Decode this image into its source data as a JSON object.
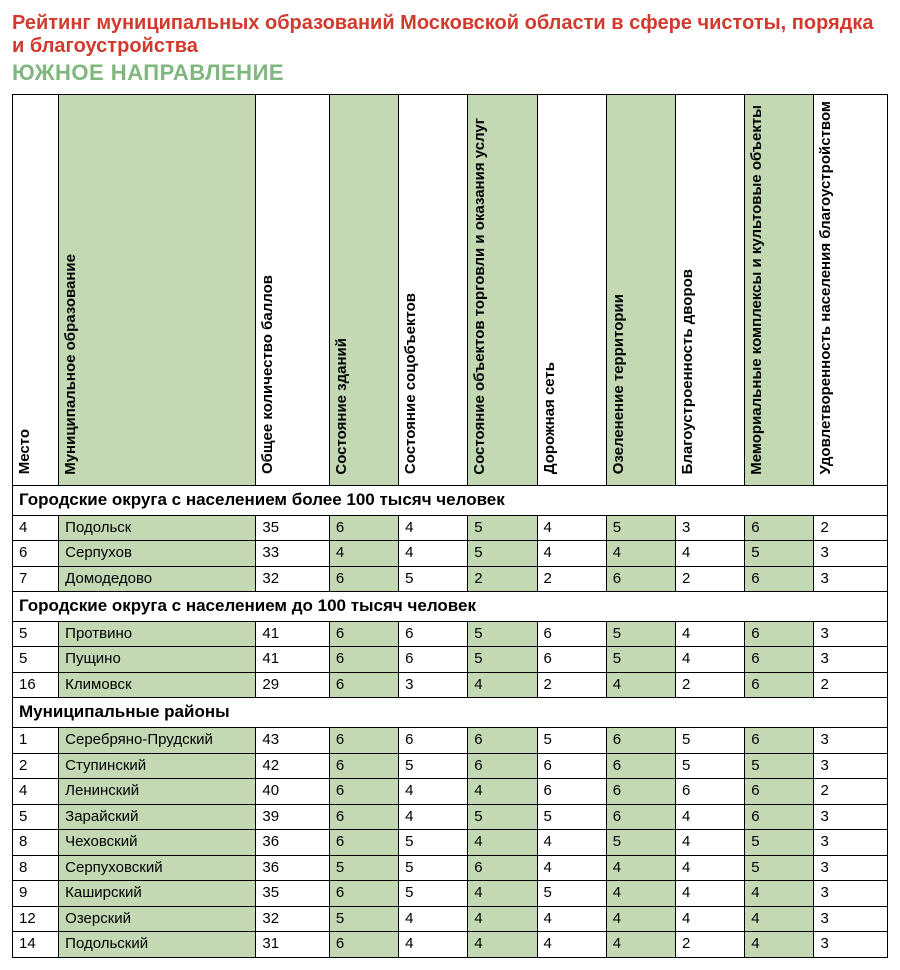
{
  "title_main": "Рейтинг муниципальных образований Московской области в сфере чистоты, порядка и благоустройства",
  "title_sub": "ЮЖНОЕ НАПРАВЛЕНИЕ",
  "colors": {
    "title_main": "#d23a2e",
    "title_sub": "#7fb77e",
    "shade": "#c2d9b4",
    "border": "#000000",
    "background": "#ffffff"
  },
  "columns": [
    {
      "key": "place",
      "label": "Место",
      "shaded": false
    },
    {
      "key": "name",
      "label": "Муниципальное образование",
      "shaded": true
    },
    {
      "key": "total",
      "label": "Общее количество баллов",
      "shaded": false
    },
    {
      "key": "c1",
      "label": "Состояние зданий",
      "shaded": true
    },
    {
      "key": "c2",
      "label": "Состояние соцобъектов",
      "shaded": false
    },
    {
      "key": "c3",
      "label": "Состояние объектов торговли и оказания услуг",
      "shaded": true
    },
    {
      "key": "c4",
      "label": "Дорожная сеть",
      "shaded": false
    },
    {
      "key": "c5",
      "label": "Озеленение территории",
      "shaded": true
    },
    {
      "key": "c6",
      "label": "Благоустроенность дворов",
      "shaded": false
    },
    {
      "key": "c7",
      "label": "Мемориальные комплексы и культовые объекты",
      "shaded": true
    },
    {
      "key": "c8",
      "label": "Удовлетворенность населения благоустройством",
      "shaded": false
    }
  ],
  "sections": [
    {
      "title": "Городские округа с населением более 100 тысяч человек",
      "rows": [
        {
          "place": "4",
          "name": "Подольск",
          "total": "35",
          "c1": "6",
          "c2": "4",
          "c3": "5",
          "c4": "4",
          "c5": "5",
          "c6": "3",
          "c7": "6",
          "c8": "2"
        },
        {
          "place": "6",
          "name": "Серпухов",
          "total": "33",
          "c1": "4",
          "c2": "4",
          "c3": "5",
          "c4": "4",
          "c5": "4",
          "c6": "4",
          "c7": "5",
          "c8": "3"
        },
        {
          "place": "7",
          "name": "Домодедово",
          "total": "32",
          "c1": "6",
          "c2": "5",
          "c3": "2",
          "c4": "2",
          "c5": "6",
          "c6": "2",
          "c7": "6",
          "c8": "3"
        }
      ]
    },
    {
      "title": "Городские округа с населением до 100 тысяч человек",
      "rows": [
        {
          "place": "5",
          "name": "Протвино",
          "total": "41",
          "c1": "6",
          "c2": "6",
          "c3": "5",
          "c4": "6",
          "c5": "5",
          "c6": "4",
          "c7": "6",
          "c8": "3"
        },
        {
          "place": "5",
          "name": "Пущино",
          "total": "41",
          "c1": "6",
          "c2": "6",
          "c3": "5",
          "c4": "6",
          "c5": "5",
          "c6": "4",
          "c7": "6",
          "c8": "3"
        },
        {
          "place": "16",
          "name": "Климовск",
          "total": "29",
          "c1": "6",
          "c2": "3",
          "c3": "4",
          "c4": "2",
          "c5": "4",
          "c6": "2",
          "c7": "6",
          "c8": "2"
        }
      ]
    },
    {
      "title": "Муниципальные районы",
      "rows": [
        {
          "place": "1",
          "name": "Серебряно-Прудский",
          "total": "43",
          "c1": "6",
          "c2": "6",
          "c3": "6",
          "c4": "5",
          "c5": "6",
          "c6": "5",
          "c7": "6",
          "c8": "3"
        },
        {
          "place": "2",
          "name": "Ступинский",
          "total": "42",
          "c1": "6",
          "c2": "5",
          "c3": "6",
          "c4": "6",
          "c5": "6",
          "c6": "5",
          "c7": "5",
          "c8": "3"
        },
        {
          "place": "4",
          "name": "Ленинский",
          "total": "40",
          "c1": "6",
          "c2": "4",
          "c3": "4",
          "c4": "6",
          "c5": "6",
          "c6": "6",
          "c7": "6",
          "c8": "2"
        },
        {
          "place": "5",
          "name": "Зарайский",
          "total": "39",
          "c1": "6",
          "c2": "4",
          "c3": "5",
          "c4": "5",
          "c5": "6",
          "c6": "4",
          "c7": "6",
          "c8": "3"
        },
        {
          "place": "8",
          "name": "Чеховский",
          "total": "36",
          "c1": "6",
          "c2": "5",
          "c3": "4",
          "c4": "4",
          "c5": "5",
          "c6": "4",
          "c7": "5",
          "c8": "3"
        },
        {
          "place": "8",
          "name": "Серпуховский",
          "total": "36",
          "c1": "5",
          "c2": "5",
          "c3": "6",
          "c4": "4",
          "c5": "4",
          "c6": "4",
          "c7": "5",
          "c8": "3"
        },
        {
          "place": "9",
          "name": "Каширский",
          "total": "35",
          "c1": "6",
          "c2": "5",
          "c3": "4",
          "c4": "5",
          "c5": "4",
          "c6": "4",
          "c7": "4",
          "c8": "3"
        },
        {
          "place": "12",
          "name": "Озерский",
          "total": "32",
          "c1": "5",
          "c2": "4",
          "c3": "4",
          "c4": "4",
          "c5": "4",
          "c6": "4",
          "c7": "4",
          "c8": "3"
        },
        {
          "place": "14",
          "name": "Подольский",
          "total": "31",
          "c1": "6",
          "c2": "4",
          "c3": "4",
          "c4": "4",
          "c5": "4",
          "c6": "2",
          "c7": "4",
          "c8": "3"
        }
      ]
    }
  ]
}
